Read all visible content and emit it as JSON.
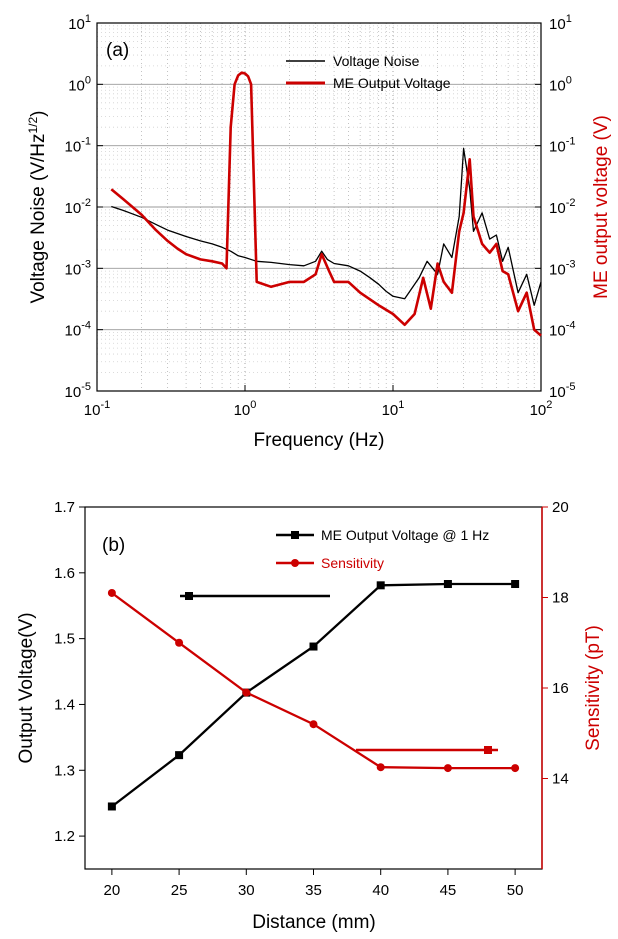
{
  "chart_data": [
    {
      "type": "line",
      "panel_label": "(a)",
      "xlabel": "Frequency (Hz)",
      "ylabel_left": "Voltage Noise (V/Hz^1/2)",
      "ylabel_right": "ME output voltage (V)",
      "x_scale": "log",
      "y_scale": "log",
      "xlim": [
        0.1,
        100
      ],
      "ylim": [
        1e-05,
        10
      ],
      "x_ticks": [
        {
          "mant": "10",
          "exp": "-1"
        },
        {
          "mant": "10",
          "exp": "0"
        },
        {
          "mant": "10",
          "exp": "1"
        },
        {
          "mant": "10",
          "exp": "2"
        }
      ],
      "y_ticks": [
        {
          "mant": "10",
          "exp": "-5"
        },
        {
          "mant": "10",
          "exp": "-4"
        },
        {
          "mant": "10",
          "exp": "-3"
        },
        {
          "mant": "10",
          "exp": "-2"
        },
        {
          "mant": "10",
          "exp": "-1"
        },
        {
          "mant": "10",
          "exp": "0"
        },
        {
          "mant": "10",
          "exp": "1"
        }
      ],
      "grid": true,
      "legend_position": "top-right",
      "series": [
        {
          "name": "Voltage Noise",
          "color": "#000000",
          "points": [
            [
              0.125,
              0.0102
            ],
            [
              0.15,
              0.0088
            ],
            [
              0.2,
              0.0068
            ],
            [
              0.25,
              0.0052
            ],
            [
              0.3,
              0.0042
            ],
            [
              0.4,
              0.0033
            ],
            [
              0.5,
              0.0028
            ],
            [
              0.6,
              0.0025
            ],
            [
              0.7,
              0.0022
            ],
            [
              0.8,
              0.0019
            ],
            [
              0.9,
              0.0016
            ],
            [
              1.0,
              0.0015
            ],
            [
              1.2,
              0.0013
            ],
            [
              1.5,
              0.00125
            ],
            [
              2.0,
              0.00115
            ],
            [
              2.5,
              0.0011
            ],
            [
              3.0,
              0.0013
            ],
            [
              3.3,
              0.0019
            ],
            [
              3.6,
              0.0014
            ],
            [
              4.0,
              0.0012
            ],
            [
              5.0,
              0.0011
            ],
            [
              6.0,
              0.0009
            ],
            [
              7.0,
              0.0007
            ],
            [
              8.0,
              0.00055
            ],
            [
              9.0,
              0.00042
            ],
            [
              10.0,
              0.00035
            ],
            [
              12.0,
              0.00032
            ],
            [
              15.0,
              0.0007
            ],
            [
              17.0,
              0.0013
            ],
            [
              20.0,
              0.0008
            ],
            [
              22.0,
              0.0025
            ],
            [
              25.0,
              0.0015
            ],
            [
              28.0,
              0.007
            ],
            [
              30.0,
              0.09
            ],
            [
              33.0,
              0.02
            ],
            [
              35.0,
              0.004
            ],
            [
              40.0,
              0.008
            ],
            [
              45.0,
              0.003
            ],
            [
              50.0,
              0.0035
            ],
            [
              55.0,
              0.0013
            ],
            [
              60.0,
              0.0022
            ],
            [
              70.0,
              0.0004
            ],
            [
              80.0,
              0.0008
            ],
            [
              90.0,
              0.00025
            ],
            [
              100.0,
              0.0006
            ]
          ]
        },
        {
          "name": "ME Output Voltage",
          "color": "#cc0000",
          "points": [
            [
              0.125,
              0.0195
            ],
            [
              0.15,
              0.0135
            ],
            [
              0.2,
              0.0075
            ],
            [
              0.25,
              0.0042
            ],
            [
              0.3,
              0.0028
            ],
            [
              0.35,
              0.0021
            ],
            [
              0.4,
              0.0017
            ],
            [
              0.5,
              0.0014
            ],
            [
              0.6,
              0.0013
            ],
            [
              0.7,
              0.0012
            ],
            [
              0.75,
              0.001
            ],
            [
              0.8,
              0.2
            ],
            [
              0.85,
              1.0
            ],
            [
              0.9,
              1.4
            ],
            [
              0.95,
              1.55
            ],
            [
              1.0,
              1.5
            ],
            [
              1.05,
              1.35
            ],
            [
              1.1,
              1.0
            ],
            [
              1.2,
              0.0006
            ],
            [
              1.5,
              0.0005
            ],
            [
              2.0,
              0.0006
            ],
            [
              2.5,
              0.0006
            ],
            [
              3.0,
              0.0008
            ],
            [
              3.3,
              0.0017
            ],
            [
              3.7,
              0.0009
            ],
            [
              4.0,
              0.0006
            ],
            [
              5.0,
              0.0006
            ],
            [
              6.0,
              0.0004
            ],
            [
              8.0,
              0.00025
            ],
            [
              10.0,
              0.00018
            ],
            [
              12.0,
              0.00012
            ],
            [
              14.0,
              0.00018
            ],
            [
              16.0,
              0.0007
            ],
            [
              18.0,
              0.00022
            ],
            [
              20.0,
              0.0012
            ],
            [
              22.0,
              0.0006
            ],
            [
              25.0,
              0.0004
            ],
            [
              28.0,
              0.004
            ],
            [
              30.0,
              0.008
            ],
            [
              33.0,
              0.06
            ],
            [
              35.0,
              0.007
            ],
            [
              40.0,
              0.0025
            ],
            [
              45.0,
              0.0018
            ],
            [
              50.0,
              0.0025
            ],
            [
              55.0,
              0.0009
            ],
            [
              60.0,
              0.0008
            ],
            [
              70.0,
              0.0002
            ],
            [
              80.0,
              0.0004
            ],
            [
              90.0,
              0.0001
            ],
            [
              100.0,
              8e-05
            ]
          ]
        }
      ]
    },
    {
      "type": "line",
      "panel_label": "(b)",
      "xlabel": "Distance (mm)",
      "ylabel_left": "Output Voltage(V)",
      "ylabel_right": "Sensitivity (pT)",
      "xlim": [
        18,
        52
      ],
      "ylim_left": [
        1.15,
        1.7
      ],
      "ylim_right": [
        12,
        20
      ],
      "x_ticks": [
        "20",
        "25",
        "30",
        "35",
        "40",
        "45",
        "50"
      ],
      "y_ticks_left": [
        "1.2",
        "1.3",
        "1.4",
        "1.5",
        "1.6",
        "1.7"
      ],
      "y_ticks_right": [
        "14",
        "16",
        "18",
        "20"
      ],
      "legend_position": "top-right",
      "series": [
        {
          "name": "ME Output Voltage @ 1 Hz",
          "color": "#000000",
          "marker": "square",
          "axis": "left",
          "x": [
            20,
            25,
            30,
            35,
            40,
            45,
            50
          ],
          "values": [
            1.245,
            1.323,
            1.418,
            1.488,
            1.581,
            1.583,
            1.583
          ]
        },
        {
          "name": "Sensitivity",
          "color": "#cc0000",
          "marker": "circle",
          "axis": "right",
          "x": [
            20,
            25,
            30,
            35,
            40,
            45,
            50
          ],
          "values": [
            18.1,
            17.0,
            15.9,
            15.2,
            14.25,
            14.23,
            14.23
          ]
        }
      ]
    }
  ]
}
